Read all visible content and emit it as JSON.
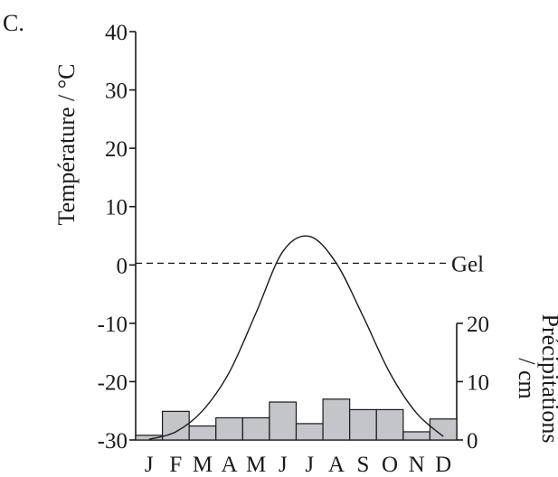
{
  "panel_label": "C.",
  "chart_data": {
    "type": "line",
    "title": "",
    "ylabel": "Température / °C",
    "y2label": "Précipitations / cm",
    "categories": [
      "J",
      "F",
      "M",
      "A",
      "M",
      "J",
      "J",
      "A",
      "S",
      "O",
      "N",
      "D"
    ],
    "ylim": [
      -30,
      40
    ],
    "yticks": [
      "40",
      "30",
      "20",
      "10",
      "0",
      "-10",
      "-20",
      "-30"
    ],
    "y2lim": [
      0,
      20
    ],
    "y2ticks": [
      "20",
      "10",
      "0"
    ],
    "series": [
      {
        "type": "line",
        "values": [
          -29.9,
          -28.6,
          -25.0,
          -18.4,
          -8.2,
          2.3,
          4.9,
          0.3,
          -8.8,
          -18.5,
          -25.4,
          -29.4
        ]
      },
      {
        "type": "bar",
        "axis": "right",
        "values": [
          0.8,
          4.9,
          2.4,
          3.8,
          3.8,
          6.5,
          2.8,
          7.0,
          5.2,
          5.2,
          1.4,
          3.6
        ]
      }
    ],
    "reference_line": {
      "value": 0.3,
      "label": "Gel",
      "style": "dashed"
    },
    "grid": false,
    "legend": "none"
  }
}
